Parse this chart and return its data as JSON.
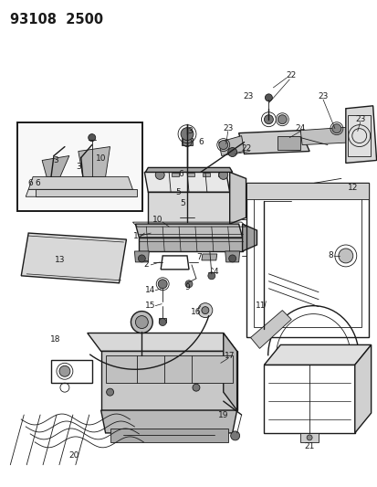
{
  "title": "93108  2500",
  "bg_color": "#ffffff",
  "line_color": "#1a1a1a",
  "fig_width": 4.14,
  "fig_height": 5.33,
  "dpi": 100,
  "title_fontsize": 10.5,
  "title_fontweight": "bold",
  "label_fontsize": 6.5
}
